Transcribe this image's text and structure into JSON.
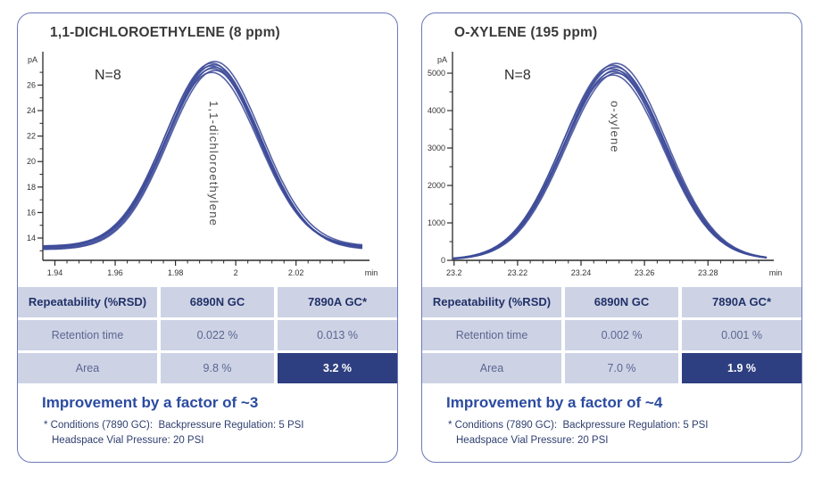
{
  "panels": [
    {
      "title": "1,1-DICHLOROETHYLENE (8 ppm)",
      "improvement": "Improvement by a factor of ~3",
      "footnote_lines": [
        "* Conditions (7890 GC):  Backpressure Regulation: 5 PSI",
        "Headspace Vial Pressure: 20 PSI"
      ],
      "table": {
        "headers": [
          "Repeatability (%RSD)",
          "6890N GC",
          "7890A GC*"
        ],
        "rows": [
          {
            "label": "Retention time",
            "values": [
              "0.022 %",
              "0.013 %"
            ]
          },
          {
            "label": "Area",
            "values": [
              "9.8 %",
              "3.2 %"
            ]
          }
        ]
      }
    },
    {
      "title": "O-XYLENE (195 ppm)",
      "improvement": "Improvement by a factor of ~4",
      "footnote_lines": [
        "* Conditions (7890 GC):  Backpressure Regulation: 5 PSI",
        "Headspace Vial Pressure: 20 PSI"
      ],
      "table": {
        "headers": [
          "Repeatability (%RSD)",
          "6890N GC",
          "7890A GC*"
        ],
        "rows": [
          {
            "label": "Retention time",
            "values": [
              "0.002 %",
              "0.001 %"
            ]
          },
          {
            "label": "Area",
            "values": [
              "7.0 %",
              "1.9 %"
            ]
          }
        ]
      }
    }
  ],
  "chart_data": [
    {
      "type": "line",
      "title": "1,1-DICHLOROETHYLENE (8 ppm)",
      "xlabel": "min",
      "ylabel": "pA",
      "xlim": [
        1.936,
        2.042
      ],
      "ylim": [
        12.25,
        28.2
      ],
      "x_major_ticks": [
        1.94,
        1.96,
        1.98,
        2,
        2.02
      ],
      "x_tick_labels": [
        "1.94",
        "1.96",
        "1.98",
        "2",
        "2.02"
      ],
      "x_minor_range": [
        1.94,
        2.036
      ],
      "x_minor_step": 0.004,
      "y_major_ticks": [
        14,
        16,
        18,
        20,
        22,
        24,
        26
      ],
      "y_tick_labels": [
        "14",
        "16",
        "18",
        "20",
        "22",
        "24",
        "26"
      ],
      "y_minor_ticks": [
        13,
        15,
        17,
        19,
        21,
        23,
        25,
        27
      ],
      "grid": false,
      "annotation": "N=8",
      "annotation_xy": [
        86,
        38
      ],
      "n_runs": 8,
      "peak": {
        "name": "1,1-dichloroethylene",
        "retention_time_min": 1.9925,
        "sigma_min": 0.0155,
        "baseline_pA": 13.25,
        "apex_pA_range": [
          27.0,
          27.85
        ]
      },
      "runs": [
        {
          "apex": 27.85,
          "center_offset": 0.0005,
          "baseline_offset": 0.12
        },
        {
          "apex": 27.72,
          "center_offset": -0.0004,
          "baseline_offset": 0.04
        },
        {
          "apex": 27.6,
          "center_offset": 0.0002,
          "baseline_offset": -0.06
        },
        {
          "apex": 27.5,
          "center_offset": -0.0006,
          "baseline_offset": 0.1
        },
        {
          "apex": 27.4,
          "center_offset": 0.0004,
          "baseline_offset": -0.12
        },
        {
          "apex": 27.3,
          "center_offset": -0.0002,
          "baseline_offset": 0.0
        },
        {
          "apex": 27.15,
          "center_offset": 0.0006,
          "baseline_offset": -0.16
        },
        {
          "apex": 27.0,
          "center_offset": -0.0005,
          "baseline_offset": 0.06
        }
      ],
      "layout": {
        "axis_x": 28,
        "peak_label_y": 62
      }
    },
    {
      "type": "line",
      "title": "O-XYLENE (195 ppm)",
      "xlabel": "min",
      "ylabel": "pA",
      "xlim": [
        23.1995,
        23.2985
      ],
      "ylim": [
        0,
        5430
      ],
      "x_major_ticks": [
        23.2,
        23.22,
        23.24,
        23.26,
        23.28
      ],
      "x_tick_labels": [
        "23.2",
        "23.22",
        "23.24",
        "23.26",
        "23.28"
      ],
      "x_minor_range": [
        23.204,
        23.296
      ],
      "x_minor_step": 0.004,
      "y_major_ticks": [
        0,
        1000,
        2000,
        3000,
        4000,
        5000
      ],
      "y_tick_labels": [
        "0",
        "1000",
        "2000",
        "3000",
        "4000",
        "5000"
      ],
      "y_minor_ticks": [
        500,
        1500,
        2500,
        3500,
        4500
      ],
      "grid": false,
      "annotation": "N=8",
      "annotation_xy": [
        92,
        38
      ],
      "n_runs": 8,
      "peak": {
        "name": "o-xylene",
        "retention_time_min": 23.2505,
        "sigma_min": 0.0158,
        "baseline_pA": 22,
        "apex_pA_range": [
          4950,
          5260
        ]
      },
      "runs": [
        {
          "apex": 5260,
          "center_offset": 0.0005,
          "baseline_offset": 6
        },
        {
          "apex": 5210,
          "center_offset": -0.0004,
          "baseline_offset": 2
        },
        {
          "apex": 5165,
          "center_offset": 0.0002,
          "baseline_offset": -3
        },
        {
          "apex": 5120,
          "center_offset": -0.0006,
          "baseline_offset": 5
        },
        {
          "apex": 5080,
          "center_offset": 0.0004,
          "baseline_offset": -6
        },
        {
          "apex": 5040,
          "center_offset": -0.0002,
          "baseline_offset": 0
        },
        {
          "apex": 5000,
          "center_offset": 0.0006,
          "baseline_offset": -8
        },
        {
          "apex": 4950,
          "center_offset": -0.0005,
          "baseline_offset": 3
        }
      ],
      "layout": {
        "axis_x": 34,
        "peak_label_y": 62
      }
    }
  ],
  "colors": {
    "panel_border": "#6b79b8",
    "trace": "#3e4b98",
    "axis": "#2a2a2a",
    "table_cell_bg": "#cdd3e5",
    "highlight_bg": "#2d3f80",
    "header_text": "#223168",
    "cell_text": "#5b6690",
    "improvement_text": "#2b4ba1",
    "footnote_text": "#2f3e6f"
  }
}
